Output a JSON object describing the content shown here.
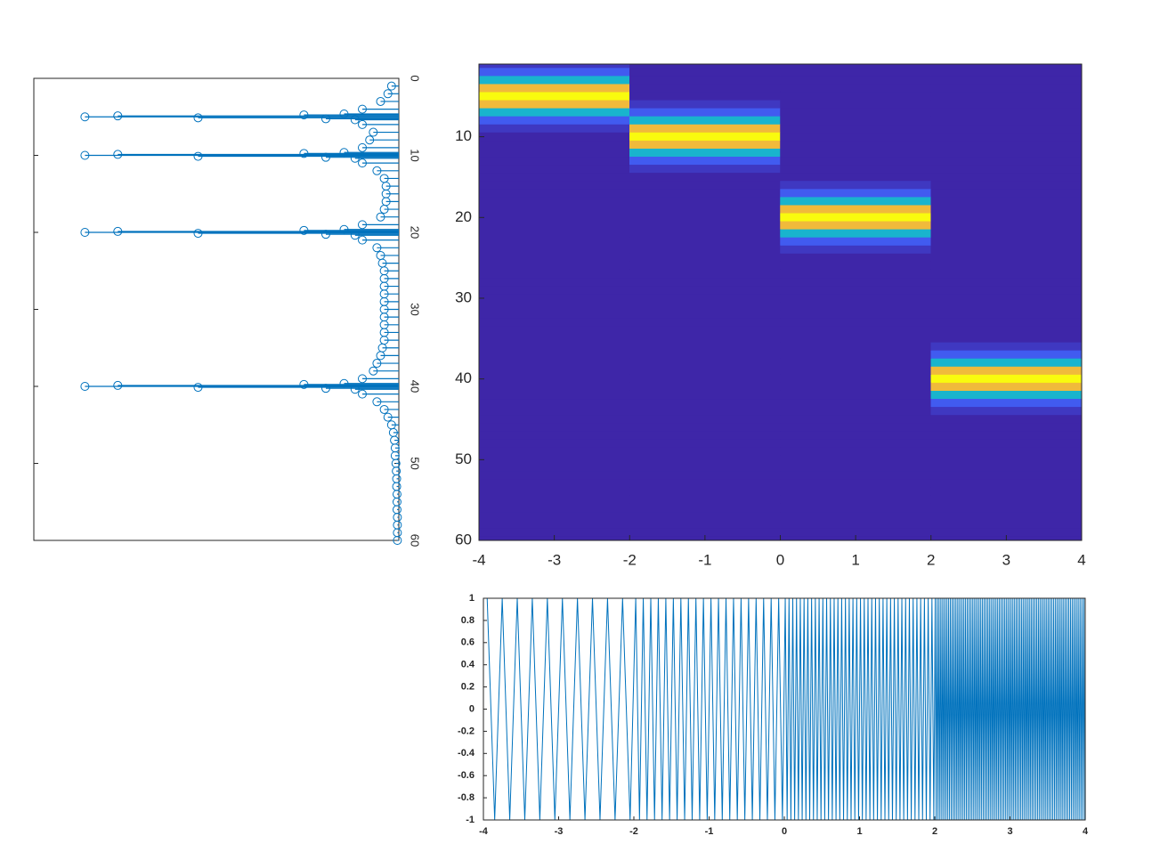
{
  "chart_data": [
    {
      "type": "stem",
      "color": "#0072bd",
      "x": [
        1,
        2,
        3,
        4,
        4.625,
        4.75,
        4.875,
        5,
        5.125,
        5.25,
        5.375,
        6,
        7,
        8,
        9,
        9.625,
        9.75,
        9.875,
        10,
        10.125,
        10.25,
        10.375,
        11,
        12,
        13,
        14,
        15,
        16,
        17,
        18,
        19,
        19.625,
        19.75,
        19.875,
        20,
        20.125,
        20.25,
        20.375,
        21,
        22,
        23,
        24,
        25,
        26,
        27,
        28,
        29,
        30,
        31,
        32,
        33,
        34,
        35,
        36,
        37,
        38,
        39,
        39.625,
        39.75,
        39.875,
        40,
        40.125,
        40.25,
        40.375,
        41,
        42,
        43,
        44,
        45,
        46,
        47,
        48,
        49,
        50,
        51,
        52,
        53,
        54,
        55,
        56,
        57,
        58,
        59,
        60
      ],
      "values": [
        0.02,
        0.03,
        0.05,
        0.1,
        0.15,
        0.26,
        0.77,
        0.86,
        0.55,
        0.2,
        0.12,
        0.1,
        0.07,
        0.08,
        0.1,
        0.15,
        0.26,
        0.77,
        0.86,
        0.55,
        0.2,
        0.12,
        0.1,
        0.06,
        0.04,
        0.035,
        0.035,
        0.035,
        0.04,
        0.05,
        0.1,
        0.15,
        0.26,
        0.77,
        0.86,
        0.55,
        0.2,
        0.12,
        0.1,
        0.06,
        0.05,
        0.045,
        0.04,
        0.04,
        0.04,
        0.04,
        0.04,
        0.04,
        0.04,
        0.04,
        0.04,
        0.04,
        0.045,
        0.05,
        0.06,
        0.07,
        0.1,
        0.15,
        0.26,
        0.77,
        0.86,
        0.55,
        0.2,
        0.12,
        0.1,
        0.06,
        0.04,
        0.03,
        0.02,
        0.015,
        0.012,
        0.01,
        0.01,
        0.008,
        0.007,
        0.006,
        0.006,
        0.005,
        0.005,
        0.005,
        0.004,
        0.004,
        0.004,
        0.004
      ],
      "xlim": [
        0,
        60
      ],
      "xticks": [
        0,
        10,
        20,
        30,
        40,
        50,
        60
      ],
      "ylim": [
        0,
        1
      ]
    },
    {
      "type": "heatmap",
      "x": [
        -3,
        -1,
        1,
        3
      ],
      "y": [
        1,
        2,
        3,
        4,
        5,
        6,
        7,
        8,
        9,
        10,
        11,
        12,
        13,
        14,
        15,
        16,
        17,
        18,
        19,
        20,
        21,
        22,
        23,
        24,
        25,
        26,
        27,
        28,
        29,
        30,
        31,
        32,
        33,
        34,
        35,
        36,
        37,
        38,
        39,
        40,
        41,
        42,
        43,
        44,
        45,
        46,
        47,
        48,
        49,
        50,
        51,
        52,
        53,
        54,
        55,
        56,
        57,
        58,
        59,
        60
      ],
      "z": [
        [
          0.05,
          0,
          0,
          0
        ],
        [
          0.15,
          0,
          0,
          0
        ],
        [
          0.45,
          0,
          0,
          0
        ],
        [
          0.85,
          0,
          0,
          0
        ],
        [
          1,
          0,
          0,
          0
        ],
        [
          0.85,
          0.05,
          0,
          0
        ],
        [
          0.45,
          0.15,
          0,
          0
        ],
        [
          0.15,
          0.45,
          0,
          0
        ],
        [
          0.05,
          0.85,
          0,
          0
        ],
        [
          0,
          1,
          0,
          0
        ],
        [
          0,
          0.85,
          0,
          0
        ],
        [
          0,
          0.45,
          0,
          0
        ],
        [
          0,
          0.15,
          0,
          0
        ],
        [
          0,
          0.05,
          0,
          0
        ],
        [
          0,
          0,
          0,
          0
        ],
        [
          0,
          0,
          0.05,
          0
        ],
        [
          0,
          0,
          0.15,
          0
        ],
        [
          0,
          0,
          0.45,
          0
        ],
        [
          0,
          0,
          0.85,
          0
        ],
        [
          0,
          0,
          1,
          0
        ],
        [
          0,
          0,
          0.85,
          0
        ],
        [
          0,
          0,
          0.45,
          0
        ],
        [
          0,
          0,
          0.15,
          0
        ],
        [
          0,
          0,
          0.05,
          0
        ],
        [
          0,
          0,
          0,
          0
        ],
        [
          0,
          0,
          0,
          0
        ],
        [
          0,
          0,
          0,
          0
        ],
        [
          0,
          0,
          0,
          0
        ],
        [
          0,
          0,
          0,
          0
        ],
        [
          0,
          0,
          0,
          0
        ],
        [
          0,
          0,
          0,
          0
        ],
        [
          0,
          0,
          0,
          0
        ],
        [
          0,
          0,
          0,
          0
        ],
        [
          0,
          0,
          0,
          0
        ],
        [
          0,
          0,
          0,
          0
        ],
        [
          0,
          0,
          0,
          0.05
        ],
        [
          0,
          0,
          0,
          0.15
        ],
        [
          0,
          0,
          0,
          0.45
        ],
        [
          0,
          0,
          0,
          0.85
        ],
        [
          0,
          0,
          0,
          1
        ],
        [
          0,
          0,
          0,
          0.85
        ],
        [
          0,
          0,
          0,
          0.45
        ],
        [
          0,
          0,
          0,
          0.15
        ],
        [
          0,
          0,
          0,
          0.05
        ],
        [
          0,
          0,
          0,
          0
        ],
        [
          0,
          0,
          0,
          0
        ],
        [
          0,
          0,
          0,
          0
        ],
        [
          0,
          0,
          0,
          0
        ],
        [
          0,
          0,
          0,
          0
        ],
        [
          0,
          0,
          0,
          0
        ],
        [
          0,
          0,
          0,
          0
        ],
        [
          0,
          0,
          0,
          0
        ],
        [
          0,
          0,
          0,
          0
        ],
        [
          0,
          0,
          0,
          0
        ],
        [
          0,
          0,
          0,
          0
        ],
        [
          0,
          0,
          0,
          0
        ],
        [
          0,
          0,
          0,
          0
        ],
        [
          0,
          0,
          0,
          0
        ],
        [
          0,
          0,
          0,
          0
        ],
        [
          0,
          0,
          0,
          0
        ]
      ],
      "clim": [
        0,
        1
      ],
      "colormap": [
        "#3e26a8",
        "#4258f0",
        "#2d8ef5",
        "#13b1d8",
        "#3dc28f",
        "#a8c049",
        "#f4ba3a",
        "#f9fb0e"
      ],
      "xlim": [
        -4,
        4
      ],
      "xticks": [
        -4,
        -3,
        -2,
        -1,
        0,
        1,
        2,
        3,
        4
      ],
      "ylim": [
        1,
        60
      ],
      "yticks": [
        10,
        20,
        30,
        40,
        50,
        60
      ],
      "ydir": "reverse"
    },
    {
      "type": "line",
      "color": "#0072bd",
      "x": [
        -3.95,
        -3.85,
        -3.75,
        -3.65,
        -3.55,
        -3.45,
        -3.35,
        -3.25,
        -3.15,
        -3.05,
        -2.95,
        -2.85,
        -2.75,
        -2.65,
        -2.55,
        -2.45,
        -2.35,
        -2.25,
        -2.15,
        -2.05,
        -1.975,
        -1.925,
        -1.875,
        -1.825,
        -1.775,
        -1.725,
        -1.675,
        -1.625,
        -1.575,
        -1.525,
        -1.475,
        -1.425,
        -1.375,
        -1.325,
        -1.275,
        -1.225,
        -1.175,
        -1.125,
        -1.075,
        -1.025,
        -0.975,
        -0.925,
        -0.875,
        -0.825,
        -0.775,
        -0.725,
        -0.675,
        -0.625,
        -0.575,
        -0.525,
        -0.475,
        -0.425,
        -0.375,
        -0.325,
        -0.275,
        -0.225,
        -0.175,
        -0.125,
        -0.075,
        -0.025,
        0.0125,
        0.0375,
        0.0625,
        0.0875,
        0.1125,
        0.1375,
        0.1625,
        0.1875,
        0.2125,
        0.2375,
        0.2625,
        0.2875,
        0.3125,
        0.3375,
        0.3625,
        0.3875,
        0.4125,
        0.4375,
        0.4625,
        0.4875,
        0.5125,
        0.5375,
        0.5625,
        0.5875,
        0.6125,
        0.6375,
        0.6625,
        0.6875,
        0.7125,
        0.7375,
        0.7625,
        0.7875,
        0.8125,
        0.8375,
        0.8625,
        0.8875,
        0.9125,
        0.9375,
        0.9625,
        0.9875,
        1.0125,
        1.0375,
        1.0625,
        1.0875,
        1.1125,
        1.1375,
        1.1625,
        1.1875,
        1.2125,
        1.2375,
        1.2625,
        1.2875,
        1.3125,
        1.3375,
        1.3625,
        1.3875,
        1.4125,
        1.4375,
        1.4625,
        1.4875,
        1.5125,
        1.5375,
        1.5625,
        1.5875,
        1.6125,
        1.6375,
        1.6625,
        1.6875,
        1.7125,
        1.7375,
        1.7625,
        1.7875,
        1.8125,
        1.8375,
        1.8625,
        1.8875,
        1.9125,
        1.9375,
        1.9625,
        1.9875,
        2.00625,
        2.01875,
        2.03125,
        2.04375,
        2.05625,
        2.06875,
        2.08125,
        2.09375,
        2.10625,
        2.11875,
        2.13125,
        2.14375,
        2.15625,
        2.16875,
        2.18125,
        2.19375,
        2.20625,
        2.21875,
        2.23125,
        2.24375,
        2.25625,
        2.26875,
        2.28125,
        2.29375,
        2.30625,
        2.31875,
        2.33125,
        2.34375,
        2.35625,
        2.36875,
        2.38125,
        2.39375,
        2.40625,
        2.41875,
        2.43125,
        2.44375,
        2.45625,
        2.46875,
        2.48125,
        2.49375,
        2.50625,
        2.51875,
        2.53125,
        2.54375,
        2.55625,
        2.56875,
        2.58125,
        2.59375,
        2.60625,
        2.61875,
        2.63125,
        2.64375,
        2.65625,
        2.66875,
        2.68125,
        2.69375,
        2.70625,
        2.71875,
        2.73125,
        2.74375,
        2.75625,
        2.76875,
        2.78125,
        2.79375,
        2.80625,
        2.81875,
        2.83125,
        2.84375,
        2.85625,
        2.86875,
        2.88125,
        2.89375,
        2.90625,
        2.91875,
        2.93125,
        2.94375,
        2.95625,
        2.96875,
        2.98125,
        2.99375,
        3.00625,
        3.01875,
        3.03125,
        3.04375,
        3.05625,
        3.06875,
        3.08125,
        3.09375,
        3.10625,
        3.11875,
        3.13125,
        3.14375,
        3.15625,
        3.16875,
        3.18125,
        3.19375,
        3.20625,
        3.21875,
        3.23125,
        3.24375,
        3.25625,
        3.26875,
        3.28125,
        3.29375,
        3.30625,
        3.31875,
        3.33125,
        3.34375,
        3.35625,
        3.36875,
        3.38125,
        3.39375,
        3.40625,
        3.41875,
        3.43125,
        3.44375,
        3.45625,
        3.46875,
        3.48125,
        3.49375,
        3.50625,
        3.51875,
        3.53125,
        3.54375,
        3.55625,
        3.56875,
        3.58125,
        3.59375,
        3.60625,
        3.61875,
        3.63125,
        3.64375,
        3.65625,
        3.66875,
        3.68125,
        3.69375,
        3.70625,
        3.71875,
        3.73125,
        3.74375,
        3.75625,
        3.76875,
        3.78125,
        3.79375,
        3.80625,
        3.81875,
        3.83125,
        3.84375,
        3.85625,
        3.86875,
        3.88125,
        3.89375,
        3.90625,
        3.91875,
        3.93125,
        3.94375,
        3.95625,
        3.96875,
        3.98125,
        3.99375
      ],
      "values": [
        1,
        -1,
        1,
        -1,
        1,
        -1,
        1,
        -1,
        1,
        -1,
        1,
        -1,
        1,
        -1,
        1,
        -1,
        1,
        -1,
        1,
        -1,
        1,
        -1,
        1,
        -1,
        1,
        -1,
        1,
        -1,
        1,
        -1,
        1,
        -1,
        1,
        -1,
        1,
        -1,
        1,
        -1,
        1,
        -1,
        1,
        -1,
        1,
        -1,
        1,
        -1,
        1,
        -1,
        1,
        -1,
        1,
        -1,
        1,
        -1,
        1,
        -1,
        1,
        -1,
        1,
        -1,
        1,
        -1,
        1,
        -1,
        1,
        -1,
        1,
        -1,
        1,
        -1,
        1,
        -1,
        1,
        -1,
        1,
        -1,
        1,
        -1,
        1,
        -1,
        1,
        -1,
        1,
        -1,
        1,
        -1,
        1,
        -1,
        1,
        -1,
        1,
        -1,
        1,
        -1,
        1,
        -1,
        1,
        -1,
        1,
        -1,
        1,
        -1,
        1,
        -1,
        1,
        -1,
        1,
        -1,
        1,
        -1,
        1,
        -1,
        1,
        -1,
        1,
        -1,
        1,
        -1,
        1,
        -1,
        1,
        -1,
        1,
        -1,
        1,
        -1,
        1,
        -1,
        1,
        -1,
        1,
        -1,
        1,
        -1,
        1,
        -1,
        1,
        -1,
        1,
        -1,
        1,
        -1,
        1,
        -1,
        1,
        -1,
        1,
        -1,
        1,
        -1,
        1,
        -1,
        1,
        -1,
        1,
        -1,
        1,
        -1,
        1,
        -1,
        1,
        -1,
        1,
        -1,
        1,
        -1,
        1,
        -1,
        1,
        -1,
        1,
        -1,
        1,
        -1,
        1,
        -1,
        1,
        -1,
        1,
        -1,
        1,
        -1,
        1,
        -1,
        1,
        -1,
        1,
        -1,
        1,
        -1,
        1,
        -1,
        1,
        -1,
        1,
        -1,
        1,
        -1,
        1,
        -1,
        1,
        -1,
        1,
        -1,
        1,
        -1,
        1,
        -1,
        1,
        -1,
        1,
        -1,
        1,
        -1,
        1,
        -1,
        1,
        -1,
        1,
        -1,
        1,
        -1,
        1,
        -1,
        1,
        -1,
        1,
        -1,
        1,
        -1,
        1,
        -1,
        1,
        -1,
        1,
        -1,
        1,
        -1,
        1,
        -1,
        1,
        -1,
        1,
        -1,
        1,
        -1,
        1,
        -1,
        1,
        -1,
        1,
        -1,
        1,
        -1,
        1,
        -1,
        1,
        -1,
        1,
        -1,
        1,
        -1,
        1,
        -1,
        1,
        -1,
        1,
        -1,
        1,
        -1,
        1,
        -1,
        1,
        -1,
        1,
        -1,
        1,
        -1,
        1,
        -1,
        1,
        -1,
        1,
        -1,
        1,
        -1,
        1,
        -1,
        1,
        -1,
        1,
        -1,
        1,
        -1,
        1,
        -1,
        1,
        -1,
        1,
        -1
      ],
      "xlim": [
        -4,
        4
      ],
      "xticks": [
        -4,
        -3,
        -2,
        -1,
        0,
        1,
        2,
        3,
        4
      ],
      "ylim": [
        -1,
        1
      ],
      "yticks": [
        -1,
        -0.8,
        -0.6,
        -0.4,
        -0.2,
        0,
        0.2,
        0.4,
        0.6,
        0.8,
        1
      ]
    }
  ]
}
